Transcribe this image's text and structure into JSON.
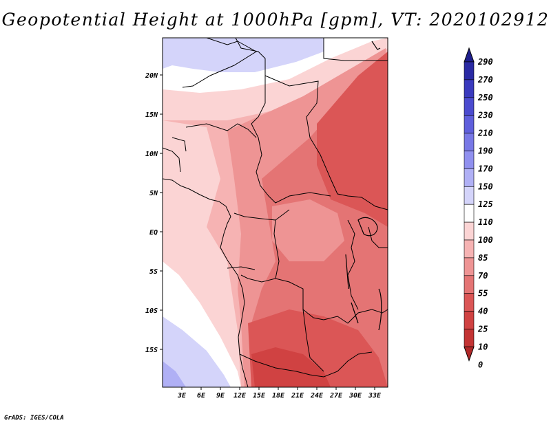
{
  "title": "Geopotential Height at 1000hPa [gpm], VT: 2020102912",
  "footer": "GrADS: IGES/COLA",
  "map": {
    "lat_ticks": [
      "20N",
      "15N",
      "10N",
      "5N",
      "EQ",
      "5S",
      "10S",
      "15S"
    ],
    "lon_ticks": [
      "3E",
      "6E",
      "9E",
      "12E",
      "15E",
      "18E",
      "21E",
      "24E",
      "27E",
      "30E",
      "33E"
    ]
  },
  "colorbar": {
    "levels": [
      "290",
      "270",
      "250",
      "230",
      "210",
      "190",
      "170",
      "150",
      "125",
      "110",
      "100",
      "85",
      "70",
      "55",
      "40",
      "25",
      "10",
      "0"
    ],
    "colors": [
      "#1e1e8c",
      "#2a2aa4",
      "#3a3abe",
      "#4b4bcf",
      "#5f5fdc",
      "#7878e6",
      "#9090ef",
      "#b0b0f5",
      "#d4d4fa",
      "#ffffff",
      "#fbd4d4",
      "#f6b3b3",
      "#ee9494",
      "#e47474",
      "#db5656",
      "#d04242",
      "#c33434",
      "#b02828"
    ]
  },
  "fields": {
    "colors": {
      "c110": "#ffffff",
      "c100": "#fbd4d4",
      "c85": "#f6b3b3",
      "c70": "#ee9494",
      "c55": "#e47474",
      "c40": "#db5656",
      "c25": "#d04242",
      "b125": "#d4d4fa",
      "b150": "#b0b0f5"
    }
  }
}
